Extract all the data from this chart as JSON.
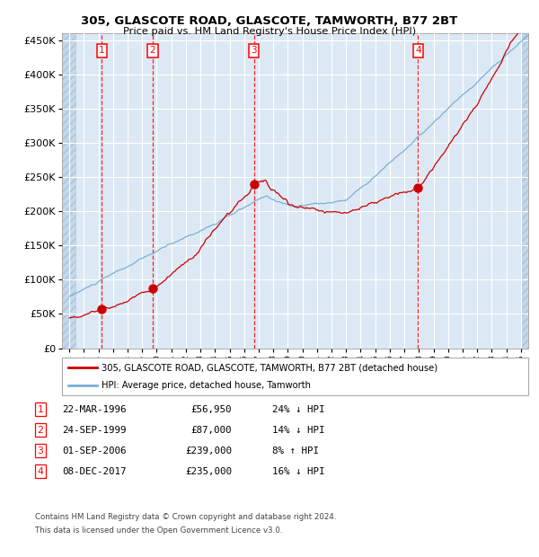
{
  "title1": "305, GLASCOTE ROAD, GLASCOTE, TAMWORTH, B77 2BT",
  "title2": "Price paid vs. HM Land Registry's House Price Index (HPI)",
  "red_line_label": "305, GLASCOTE ROAD, GLASCOTE, TAMWORTH, B77 2BT (detached house)",
  "blue_line_label": "HPI: Average price, detached house, Tamworth",
  "transactions": [
    {
      "num": 1,
      "date": "22-MAR-1996",
      "price": 56950,
      "hpi_pct": "24% ↓ HPI",
      "date_x": 1996.22
    },
    {
      "num": 2,
      "date": "24-SEP-1999",
      "price": 87000,
      "hpi_pct": "14% ↓ HPI",
      "date_x": 1999.73
    },
    {
      "num": 3,
      "date": "01-SEP-2006",
      "price": 239000,
      "hpi_pct": "8% ↑ HPI",
      "date_x": 2006.67
    },
    {
      "num": 4,
      "date": "08-DEC-2017",
      "price": 235000,
      "hpi_pct": "16% ↓ HPI",
      "date_x": 2017.94
    }
  ],
  "footnote1": "Contains HM Land Registry data © Crown copyright and database right 2024.",
  "footnote2": "This data is licensed under the Open Government Licence v3.0.",
  "ylim": [
    0,
    460000
  ],
  "xlim_start": 1993.5,
  "xlim_end": 2025.5,
  "plot_bg": "#dce9f5",
  "grid_color": "#ffffff",
  "red_color": "#cc0000",
  "blue_color": "#7bafd4"
}
